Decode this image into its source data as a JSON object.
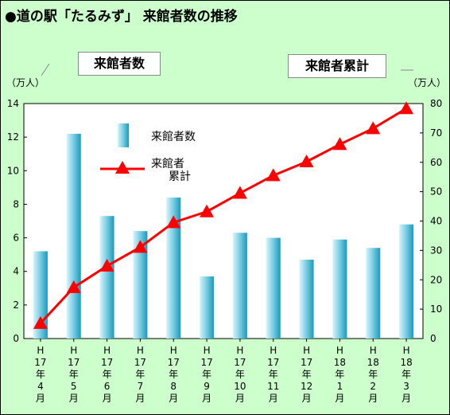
{
  "title": "●道の駅「たるみず」 来館者数の推移",
  "left_badge": "来館者数",
  "right_badge": "来館者累計",
  "chart_data": {
    "type": "bar",
    "categories": [
      [
        "H",
        "17",
        "年",
        "4",
        "月"
      ],
      [
        "H",
        "17",
        "年",
        "5",
        "月"
      ],
      [
        "H",
        "17",
        "年",
        "6",
        "月"
      ],
      [
        "H",
        "17",
        "年",
        "7",
        "月"
      ],
      [
        "H",
        "17",
        "年",
        "8",
        "月"
      ],
      [
        "H",
        "17",
        "年",
        "9",
        "月"
      ],
      [
        "H",
        "17",
        "年",
        "10",
        "月"
      ],
      [
        "H",
        "17",
        "年",
        "11",
        "月"
      ],
      [
        "H",
        "17",
        "年",
        "12",
        "月"
      ],
      [
        "H",
        "18",
        "年",
        "1",
        "月"
      ],
      [
        "H",
        "18",
        "年",
        "2",
        "月"
      ],
      [
        "H",
        "18",
        "年",
        "3",
        "月"
      ]
    ],
    "series": [
      {
        "name": "来館者数",
        "type": "bar",
        "axis": "left",
        "values": [
          5.2,
          12.2,
          7.3,
          6.4,
          8.4,
          3.7,
          6.3,
          6.0,
          4.7,
          5.9,
          5.4,
          6.8
        ]
      },
      {
        "name": "来館者累計",
        "legend_label": [
          "来館者",
          "累計"
        ],
        "type": "line",
        "axis": "right",
        "values": [
          5.2,
          17.4,
          24.7,
          31.1,
          39.5,
          43.2,
          49.5,
          55.5,
          60.2,
          66.1,
          71.5,
          78.3
        ]
      }
    ],
    "left_axis": {
      "unit_label": "（万人）",
      "range": [
        0,
        14
      ],
      "ticks": [
        0,
        2,
        4,
        6,
        8,
        10,
        12,
        14
      ]
    },
    "right_axis": {
      "unit_label": "（万人）",
      "range": [
        0,
        80
      ],
      "ticks": [
        0,
        10,
        20,
        30,
        40,
        50,
        60,
        70,
        80
      ]
    },
    "grid": false,
    "legend_position": "top-left",
    "colors": {
      "background": "#ccffcc",
      "plot_background": "#ffffff",
      "bar_light": "#d6f4fa",
      "bar_dark": "#1c9ab8",
      "line": "#ff0000"
    }
  }
}
